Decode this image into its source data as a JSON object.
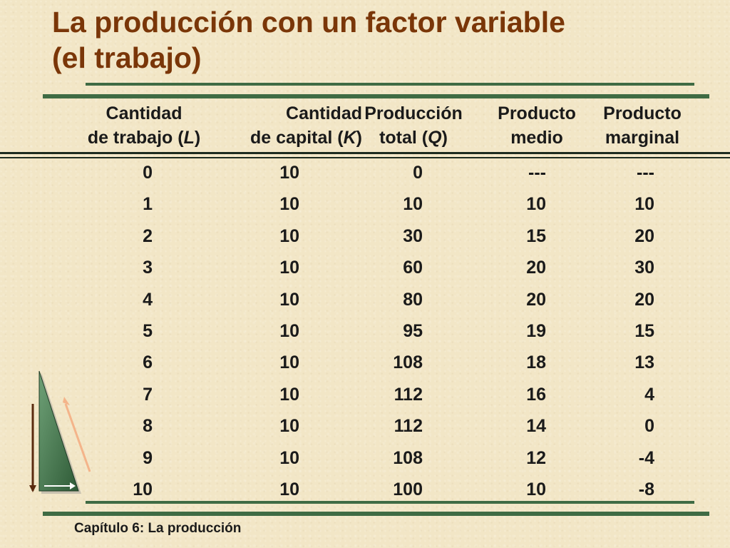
{
  "title": {
    "line1": "La producción con un factor variable",
    "line2": "(el trabajo)"
  },
  "table": {
    "headers": [
      {
        "line1": "Cantidad",
        "line2_pre": "de trabajo (",
        "symbol": "L",
        "line2_post": ")"
      },
      {
        "line1": "Cantidad",
        "line2_pre": "de capital (",
        "symbol": "K",
        "line2_post": ")"
      },
      {
        "line1": "Producción",
        "line2_pre": "total (",
        "symbol": "Q",
        "line2_post": ")"
      },
      {
        "line1": "Producto",
        "line2_pre": "medio",
        "symbol": "",
        "line2_post": ""
      },
      {
        "line1": "Producto",
        "line2_pre": "marginal",
        "symbol": "",
        "line2_post": ""
      }
    ],
    "rows": [
      [
        "0",
        "10",
        "0",
        "---",
        "---"
      ],
      [
        "1",
        "10",
        "10",
        "10",
        "10"
      ],
      [
        "2",
        "10",
        "30",
        "15",
        "20"
      ],
      [
        "3",
        "10",
        "60",
        "20",
        "30"
      ],
      [
        "4",
        "10",
        "80",
        "20",
        "20"
      ],
      [
        "5",
        "10",
        "95",
        "19",
        "15"
      ],
      [
        "6",
        "10",
        "108",
        "18",
        "13"
      ],
      [
        "7",
        "10",
        "112",
        "16",
        "4"
      ],
      [
        "8",
        "10",
        "112",
        "14",
        "0"
      ],
      [
        "9",
        "10",
        "108",
        "12",
        "-4"
      ],
      [
        "10",
        "10",
        "100",
        "10",
        "-8"
      ]
    ]
  },
  "footer": {
    "text": "Capítulo 6: La producción"
  },
  "colors": {
    "background": "#f2e6c6",
    "title": "#7a3608",
    "rule": "#3f6b44",
    "text": "#1a1a1a"
  },
  "icons": {
    "logo": "triangle-logo-icon"
  }
}
